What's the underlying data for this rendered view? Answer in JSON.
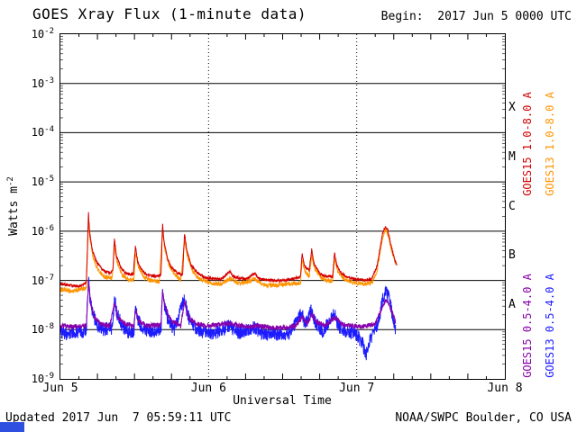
{
  "title": "GOES Xray Flux (1-minute data)",
  "begin_label": "Begin:  2017 Jun 5 0000 UTC",
  "footer": {
    "updated": "Updated 2017 Jun  7 05:59:11 UTC",
    "source": "NOAA/SWPC Boulder, CO USA"
  },
  "colors": {
    "goes15_long": "#d40000",
    "goes13_long": "#ff9400",
    "goes15_short": "#8800aa",
    "goes13_short": "#1c1cff",
    "grid": "#000000",
    "bottom_fragment": "#2e4fe0"
  },
  "legend_right": [
    {
      "label": "GOES15 1.0-8.0 A",
      "color_key": "goes15_long"
    },
    {
      "label": "GOES13 1.0-8.0 A",
      "color_key": "goes13_long"
    },
    {
      "label": "GOES15 0.5-4.0 A",
      "color_key": "goes15_short"
    },
    {
      "label": "GOES13 0.5-4.0 A",
      "color_key": "goes13_short"
    }
  ],
  "chart_data": {
    "type": "line",
    "title": "GOES Xray Flux (1-minute data)",
    "xlabel": "Universal Time",
    "ylabel": "Watts m^-2",
    "ylabel_base": "Watts m",
    "ylabel_exp": "-2",
    "x_start": "2017 Jun 5 0000 UTC",
    "xlim_hours": [
      0,
      72
    ],
    "x_tick_hours": [
      0,
      24,
      48,
      72
    ],
    "x_tick_labels": [
      "Jun 5",
      "Jun 6",
      "Jun 7",
      "Jun 8"
    ],
    "day_gridlines_hours": [
      24,
      48
    ],
    "ylog_top_exp": -2,
    "ylog_bottom_exp": -9,
    "y_tick_exponents": [
      -2,
      -3,
      -4,
      -5,
      -6,
      -7,
      -8,
      -9
    ],
    "flare_class_labels": [
      {
        "label": "X",
        "center_log10": -3.5
      },
      {
        "label": "M",
        "center_log10": -4.5
      },
      {
        "label": "C",
        "center_log10": -5.5
      },
      {
        "label": "B",
        "center_log10": -6.5
      },
      {
        "label": "A",
        "center_log10": -7.5
      }
    ],
    "series": [
      {
        "name": "GOES13 1.0-8.0 A",
        "color_key": "goes13_long",
        "noise": 0.045,
        "points": [
          [
            0,
            6.5e-08
          ],
          [
            2,
            6e-08
          ],
          [
            4.2,
            7e-08
          ],
          [
            4.55,
            1.6e-06
          ],
          [
            4.8,
            7e-07
          ],
          [
            5.3,
            3e-07
          ],
          [
            6,
            1.7e-07
          ],
          [
            7,
            1.2e-07
          ],
          [
            8.4,
            1.1e-07
          ],
          [
            8.75,
            5e-07
          ],
          [
            9.2,
            2.3e-07
          ],
          [
            10,
            1.3e-07
          ],
          [
            11,
            1.05e-07
          ],
          [
            11.9,
            1e-07
          ],
          [
            12.15,
            3.8e-07
          ],
          [
            12.6,
            2e-07
          ],
          [
            13.4,
            1.2e-07
          ],
          [
            14.5,
            1e-07
          ],
          [
            16,
            9.5e-08
          ],
          [
            16.55,
            1.05e-06
          ],
          [
            16.9,
            4.5e-07
          ],
          [
            17.5,
            2.2e-07
          ],
          [
            18.5,
            1.3e-07
          ],
          [
            19.5,
            1.05e-07
          ],
          [
            20.1,
            6.5e-07
          ],
          [
            20.6,
            3e-07
          ],
          [
            21.5,
            1.5e-07
          ],
          [
            22.5,
            1.1e-07
          ],
          [
            24,
            9e-08
          ],
          [
            26,
            8.5e-08
          ],
          [
            27.5,
            1.1e-07
          ],
          [
            29,
            8.5e-08
          ],
          [
            31.5,
            1.05e-07
          ],
          [
            33,
            8e-08
          ],
          [
            35,
            8e-08
          ],
          [
            37,
            8.5e-08
          ],
          [
            38.9,
            9e-08
          ],
          [
            39.15,
            2.6e-07
          ],
          [
            39.6,
            1.5e-07
          ],
          [
            40.3,
            1.2e-07
          ],
          [
            40.7,
            3.2e-07
          ],
          [
            41.2,
            1.7e-07
          ],
          [
            42.5,
            1.05e-07
          ],
          [
            44.1,
            9.5e-08
          ],
          [
            44.4,
            2.7e-07
          ],
          [
            44.9,
            1.5e-07
          ],
          [
            46,
            1.05e-07
          ],
          [
            47.5,
            9e-08
          ],
          [
            49,
            8.5e-08
          ],
          [
            50.5,
            9e-08
          ],
          [
            51.3,
            1.6e-07
          ],
          [
            52.2,
            7.5e-07
          ],
          [
            52.6,
            1.05e-06
          ],
          [
            53.0,
            9e-07
          ],
          [
            53.7,
            4e-07
          ],
          [
            54.3,
            2e-07
          ]
        ]
      },
      {
        "name": "GOES15 1.0-8.0 A",
        "color_key": "goes15_long",
        "noise": 0.03,
        "points": [
          [
            0,
            8.5e-08
          ],
          [
            1.5,
            8e-08
          ],
          [
            3,
            7.5e-08
          ],
          [
            4.2,
            9e-08
          ],
          [
            4.55,
            2.3e-06
          ],
          [
            4.75,
            9e-07
          ],
          [
            5.2,
            4e-07
          ],
          [
            6,
            2.2e-07
          ],
          [
            7,
            1.6e-07
          ],
          [
            8,
            1.4e-07
          ],
          [
            8.5,
            1.6e-07
          ],
          [
            8.75,
            7e-07
          ],
          [
            9.1,
            3e-07
          ],
          [
            9.8,
            1.8e-07
          ],
          [
            10.5,
            1.4e-07
          ],
          [
            11.8,
            1.3e-07
          ],
          [
            12.15,
            5e-07
          ],
          [
            12.5,
            2.5e-07
          ],
          [
            13.2,
            1.6e-07
          ],
          [
            14,
            1.3e-07
          ],
          [
            15.5,
            1.2e-07
          ],
          [
            16.3,
            1.3e-07
          ],
          [
            16.55,
            1.4e-06
          ],
          [
            16.8,
            6e-07
          ],
          [
            17.3,
            3e-07
          ],
          [
            18,
            1.8e-07
          ],
          [
            19,
            1.4e-07
          ],
          [
            19.8,
            1.3e-07
          ],
          [
            20.1,
            9e-07
          ],
          [
            20.5,
            4e-07
          ],
          [
            21.2,
            2e-07
          ],
          [
            22,
            1.5e-07
          ],
          [
            23,
            1.2e-07
          ],
          [
            24,
            1.1e-07
          ],
          [
            26,
            1.05e-07
          ],
          [
            27.5,
            1.5e-07
          ],
          [
            28,
            1.2e-07
          ],
          [
            30,
            1.05e-07
          ],
          [
            31.5,
            1.4e-07
          ],
          [
            32,
            1.1e-07
          ],
          [
            34,
            1e-07
          ],
          [
            36,
            1e-07
          ],
          [
            38,
            1.1e-07
          ],
          [
            38.9,
            1.2e-07
          ],
          [
            39.15,
            3.5e-07
          ],
          [
            39.5,
            2e-07
          ],
          [
            40.3,
            1.6e-07
          ],
          [
            40.7,
            4.2e-07
          ],
          [
            41.1,
            2.2e-07
          ],
          [
            42,
            1.4e-07
          ],
          [
            43,
            1.2e-07
          ],
          [
            44.1,
            1.2e-07
          ],
          [
            44.4,
            3.6e-07
          ],
          [
            44.8,
            2e-07
          ],
          [
            45.5,
            1.4e-07
          ],
          [
            46.5,
            1.15e-07
          ],
          [
            48,
            1.05e-07
          ],
          [
            49.5,
            1e-07
          ],
          [
            50.5,
            1.1e-07
          ],
          [
            51.3,
            2e-07
          ],
          [
            52.2,
            9e-07
          ],
          [
            52.6,
            1.25e-06
          ],
          [
            53.0,
            1.1e-06
          ],
          [
            53.6,
            5e-07
          ],
          [
            54.2,
            2.5e-07
          ],
          [
            54.5,
            2e-07
          ]
        ]
      },
      {
        "name": "GOES13 0.5-4.0 A",
        "color_key": "goes13_short",
        "noise": 0.14,
        "points": [
          [
            0,
            9e-09
          ],
          [
            1,
            8e-09
          ],
          [
            2,
            9e-09
          ],
          [
            3,
            8.5e-09
          ],
          [
            4.2,
            1e-08
          ],
          [
            4.55,
            1.1e-07
          ],
          [
            4.8,
            4e-08
          ],
          [
            5.3,
            2e-08
          ],
          [
            6,
            1.2e-08
          ],
          [
            7,
            1e-08
          ],
          [
            8.5,
            1.1e-08
          ],
          [
            8.75,
            4.5e-08
          ],
          [
            9.2,
            2e-08
          ],
          [
            10,
            1.2e-08
          ],
          [
            11,
            9e-09
          ],
          [
            11.9,
            9e-09
          ],
          [
            12.15,
            3e-08
          ],
          [
            12.6,
            1.5e-08
          ],
          [
            13.5,
            1e-08
          ],
          [
            15,
            9e-09
          ],
          [
            16.3,
            1e-08
          ],
          [
            16.55,
            7e-08
          ],
          [
            16.9,
            3e-08
          ],
          [
            17.5,
            1.5e-08
          ],
          [
            18.5,
            1e-08
          ],
          [
            20.1,
            4.5e-08
          ],
          [
            20.6,
            2e-08
          ],
          [
            21.5,
            1.2e-08
          ],
          [
            23,
            9e-09
          ],
          [
            25,
            8.5e-09
          ],
          [
            27.5,
            1.2e-08
          ],
          [
            29,
            8.5e-09
          ],
          [
            31.5,
            1.1e-08
          ],
          [
            33,
            8e-09
          ],
          [
            35,
            8e-09
          ],
          [
            37,
            8.5e-09
          ],
          [
            39.15,
            2.2e-08
          ],
          [
            39.6,
            1.3e-08
          ],
          [
            40.7,
            2.5e-08
          ],
          [
            41.3,
            1.4e-08
          ],
          [
            42.5,
            9e-09
          ],
          [
            44.4,
            2.2e-08
          ],
          [
            45,
            1.2e-08
          ],
          [
            46.5,
            9e-09
          ],
          [
            48,
            8e-09
          ],
          [
            49,
            5e-09
          ],
          [
            49.5,
            3e-09
          ],
          [
            50,
            6e-09
          ],
          [
            50.8,
            8e-09
          ],
          [
            51.5,
            1.5e-08
          ],
          [
            52.3,
            4.5e-08
          ],
          [
            52.7,
            6e-08
          ],
          [
            53.1,
            5e-08
          ],
          [
            53.8,
            2e-08
          ],
          [
            54.3,
            9e-09
          ]
        ]
      },
      {
        "name": "GOES15 0.5-4.0 A",
        "color_key": "goes15_short",
        "noise": 0.05,
        "points": [
          [
            0,
            1.2e-08
          ],
          [
            2,
            1.15e-08
          ],
          [
            4.2,
            1.2e-08
          ],
          [
            4.55,
            9e-08
          ],
          [
            4.9,
            3.5e-08
          ],
          [
            5.5,
            1.8e-08
          ],
          [
            6.5,
            1.3e-08
          ],
          [
            8,
            1.2e-08
          ],
          [
            8.75,
            3.5e-08
          ],
          [
            9.3,
            1.8e-08
          ],
          [
            10.5,
            1.3e-08
          ],
          [
            11.9,
            1.2e-08
          ],
          [
            12.15,
            2.5e-08
          ],
          [
            12.7,
            1.5e-08
          ],
          [
            14,
            1.2e-08
          ],
          [
            16.3,
            1.25e-08
          ],
          [
            16.55,
            6e-08
          ],
          [
            17,
            2.8e-08
          ],
          [
            18,
            1.5e-08
          ],
          [
            19.5,
            1.2e-08
          ],
          [
            20.1,
            3.8e-08
          ],
          [
            20.7,
            1.8e-08
          ],
          [
            22,
            1.3e-08
          ],
          [
            24,
            1.2e-08
          ],
          [
            27.5,
            1.35e-08
          ],
          [
            30,
            1.15e-08
          ],
          [
            32,
            1.2e-08
          ],
          [
            34,
            1.1e-08
          ],
          [
            36,
            1.1e-08
          ],
          [
            38,
            1.15e-08
          ],
          [
            39.15,
            1.8e-08
          ],
          [
            40,
            1.3e-08
          ],
          [
            40.7,
            2e-08
          ],
          [
            41.5,
            1.4e-08
          ],
          [
            43,
            1.2e-08
          ],
          [
            44.4,
            1.8e-08
          ],
          [
            45.5,
            1.3e-08
          ],
          [
            47,
            1.2e-08
          ],
          [
            49,
            1.15e-08
          ],
          [
            51,
            1.3e-08
          ],
          [
            52.3,
            3.2e-08
          ],
          [
            52.7,
            4e-08
          ],
          [
            53.2,
            3.4e-08
          ],
          [
            54,
            1.8e-08
          ],
          [
            54.3,
            1.4e-08
          ]
        ]
      }
    ]
  }
}
